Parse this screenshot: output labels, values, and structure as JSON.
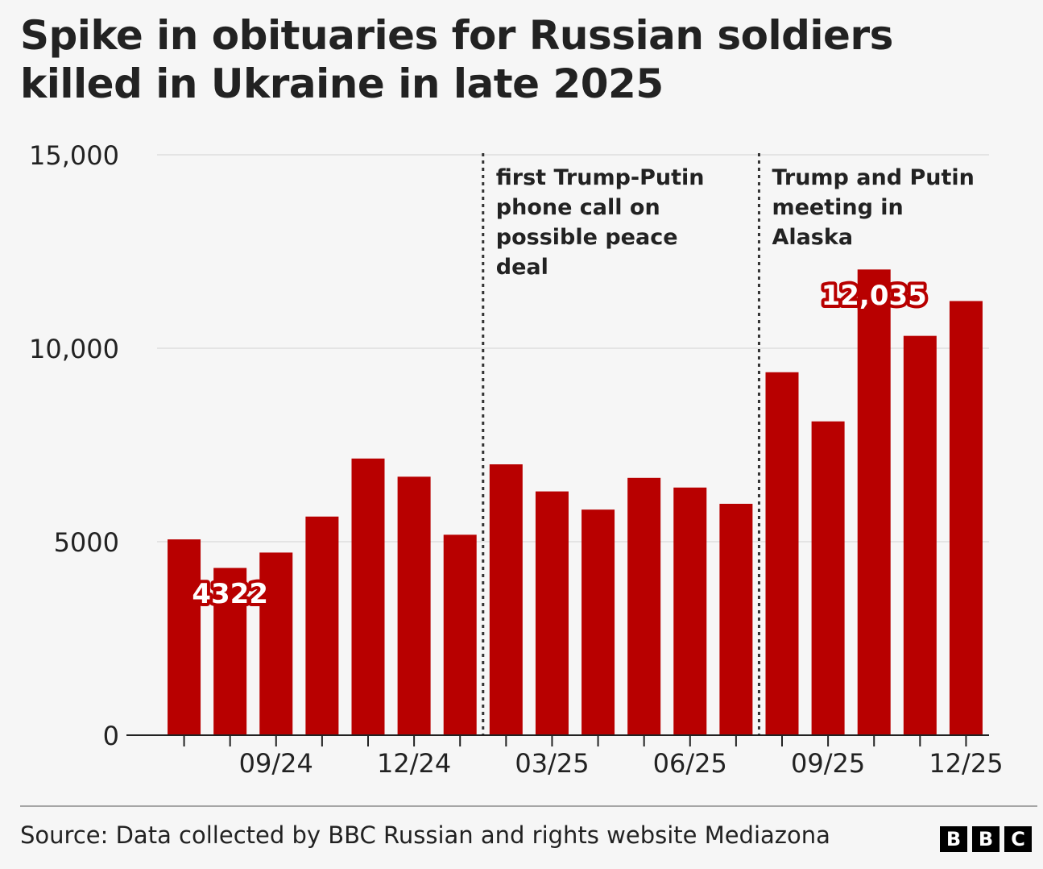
{
  "title": "Spike in obituaries for Russian soldiers killed in Ukraine in late 2025",
  "source": "Source: Data collected by BBC Russian and rights website Mediazona",
  "logo": [
    "B",
    "B",
    "C"
  ],
  "colors": {
    "bar": "#b80000",
    "axis": "#222222",
    "grid": "#e4e4e4",
    "text": "#222222",
    "label": "#ffffff"
  },
  "chart_data": {
    "type": "bar",
    "title": "Spike in obituaries for Russian soldiers killed in Ukraine in late 2025",
    "xlabel": "",
    "ylabel": "",
    "ylim": [
      0,
      15000
    ],
    "y_ticks": [
      0,
      5000,
      10000,
      15000
    ],
    "y_tick_labels": [
      "0",
      "5000",
      "10,000",
      "15,000"
    ],
    "grid": true,
    "categories": [
      "07/24",
      "08/24",
      "09/24",
      "10/24",
      "11/24",
      "12/24",
      "01/25",
      "02/25",
      "03/25",
      "04/25",
      "05/25",
      "06/25",
      "07/25",
      "08/25",
      "09/25",
      "10/25",
      "11/25",
      "12/25"
    ],
    "values": [
      5060,
      4322,
      4720,
      5650,
      7150,
      6680,
      5180,
      7000,
      6300,
      5830,
      6650,
      6400,
      5980,
      9380,
      8110,
      12035,
      10320,
      11220
    ],
    "x_tick_labels": [
      {
        "index": 2,
        "label": "09/24"
      },
      {
        "index": 5,
        "label": "12/24"
      },
      {
        "index": 8,
        "label": "03/25"
      },
      {
        "index": 11,
        "label": "06/25"
      },
      {
        "index": 14,
        "label": "09/25"
      },
      {
        "index": 17,
        "label": "12/25"
      }
    ],
    "data_labels": [
      {
        "index": 1,
        "text": "4322"
      },
      {
        "index": 15,
        "text": "12,035"
      }
    ],
    "annotations": [
      {
        "after_index": 6,
        "text_lines": [
          "first Trump-Putin",
          "phone call on",
          "possible peace",
          "deal"
        ]
      },
      {
        "after_index": 12,
        "text_lines": [
          "Trump and Putin",
          "meeting in",
          "Alaska"
        ]
      }
    ]
  }
}
